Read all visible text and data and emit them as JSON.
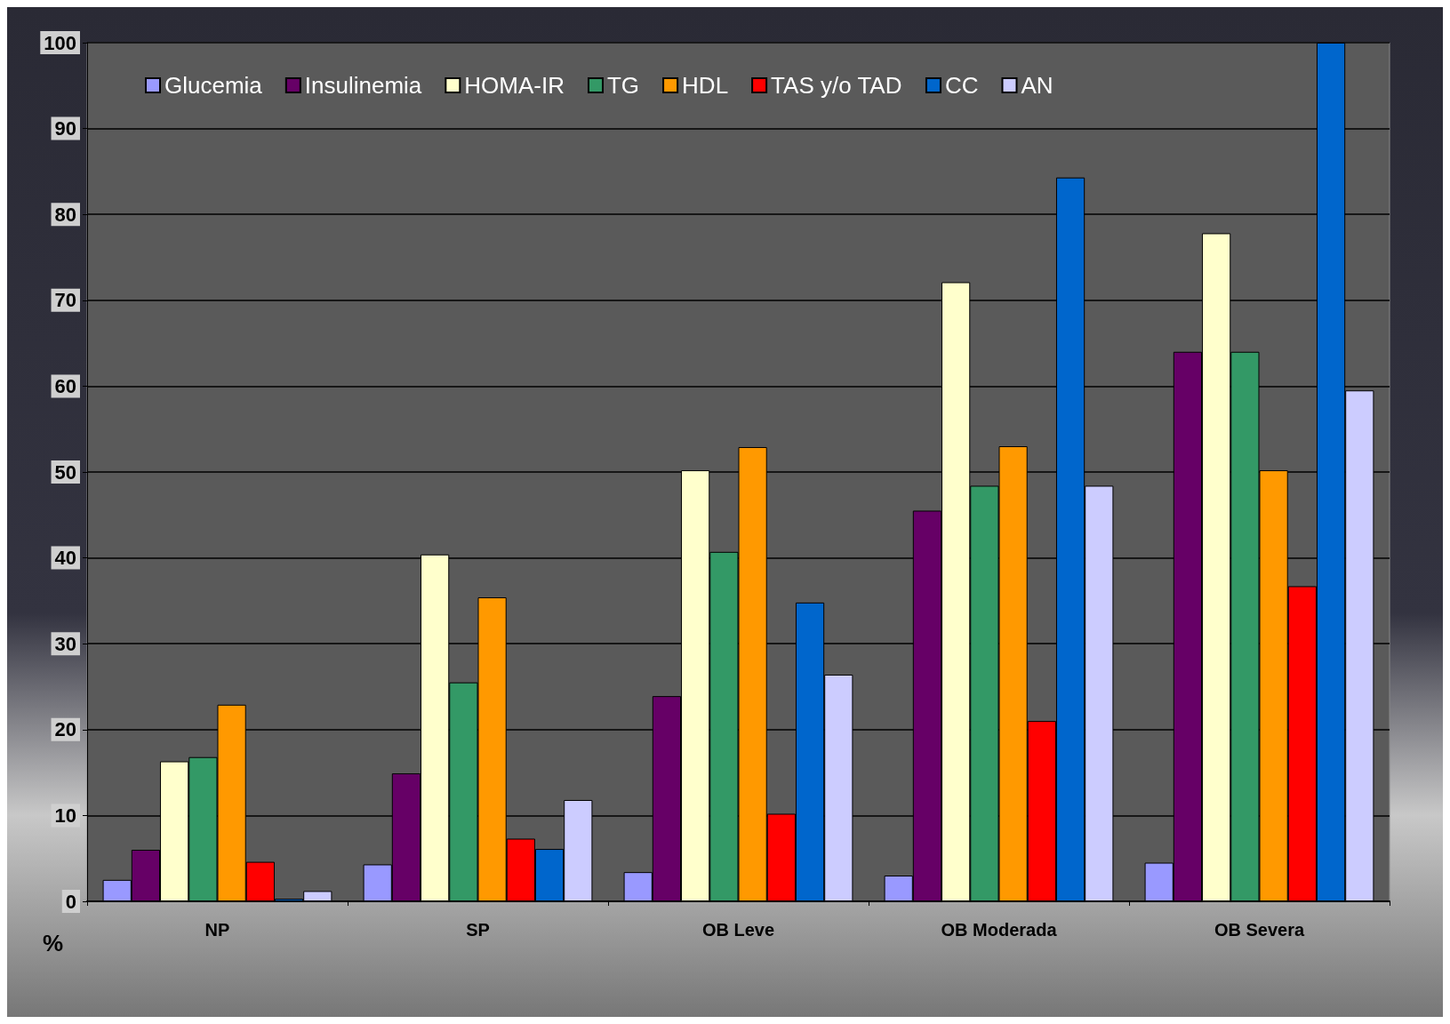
{
  "chart_data": {
    "type": "bar",
    "ylabel": "%",
    "categories": [
      "NP",
      "SP",
      "OB Leve",
      "OB Moderada",
      "OB Severa"
    ],
    "series": [
      {
        "name": "Glucemia",
        "color": "#9999ff",
        "values": [
          2.5,
          4.3,
          3.4,
          3.0,
          4.5
        ]
      },
      {
        "name": "Insulinemia",
        "color": "#660066",
        "values": [
          6,
          14.9,
          23.9,
          45.5,
          64
        ]
      },
      {
        "name": "HOMA-IR",
        "color": "#ffffcc",
        "values": [
          16.3,
          40.4,
          50.2,
          72.1,
          77.8
        ]
      },
      {
        "name": "TG",
        "color": "#339966",
        "values": [
          16.8,
          25.5,
          40.7,
          48.4,
          64
        ]
      },
      {
        "name": "HDL",
        "color": "#ff9900",
        "values": [
          22.9,
          35.4,
          52.9,
          53,
          50.2
        ]
      },
      {
        "name": "TAS y/o TAD",
        "color": "#ff0000",
        "values": [
          4.6,
          7.3,
          10.2,
          21,
          36.7
        ]
      },
      {
        "name": "CC",
        "color": "#0066cc",
        "values": [
          0.3,
          6.1,
          34.8,
          84.3,
          100
        ]
      },
      {
        "name": "AN",
        "color": "#ccccff",
        "values": [
          1.2,
          11.8,
          26.4,
          48.4,
          59.5
        ]
      }
    ],
    "ylim": [
      0,
      100
    ],
    "yticks": [
      0,
      10,
      20,
      30,
      40,
      50,
      60,
      70,
      80,
      90,
      100
    ],
    "grid": "y",
    "legend": "top left"
  }
}
